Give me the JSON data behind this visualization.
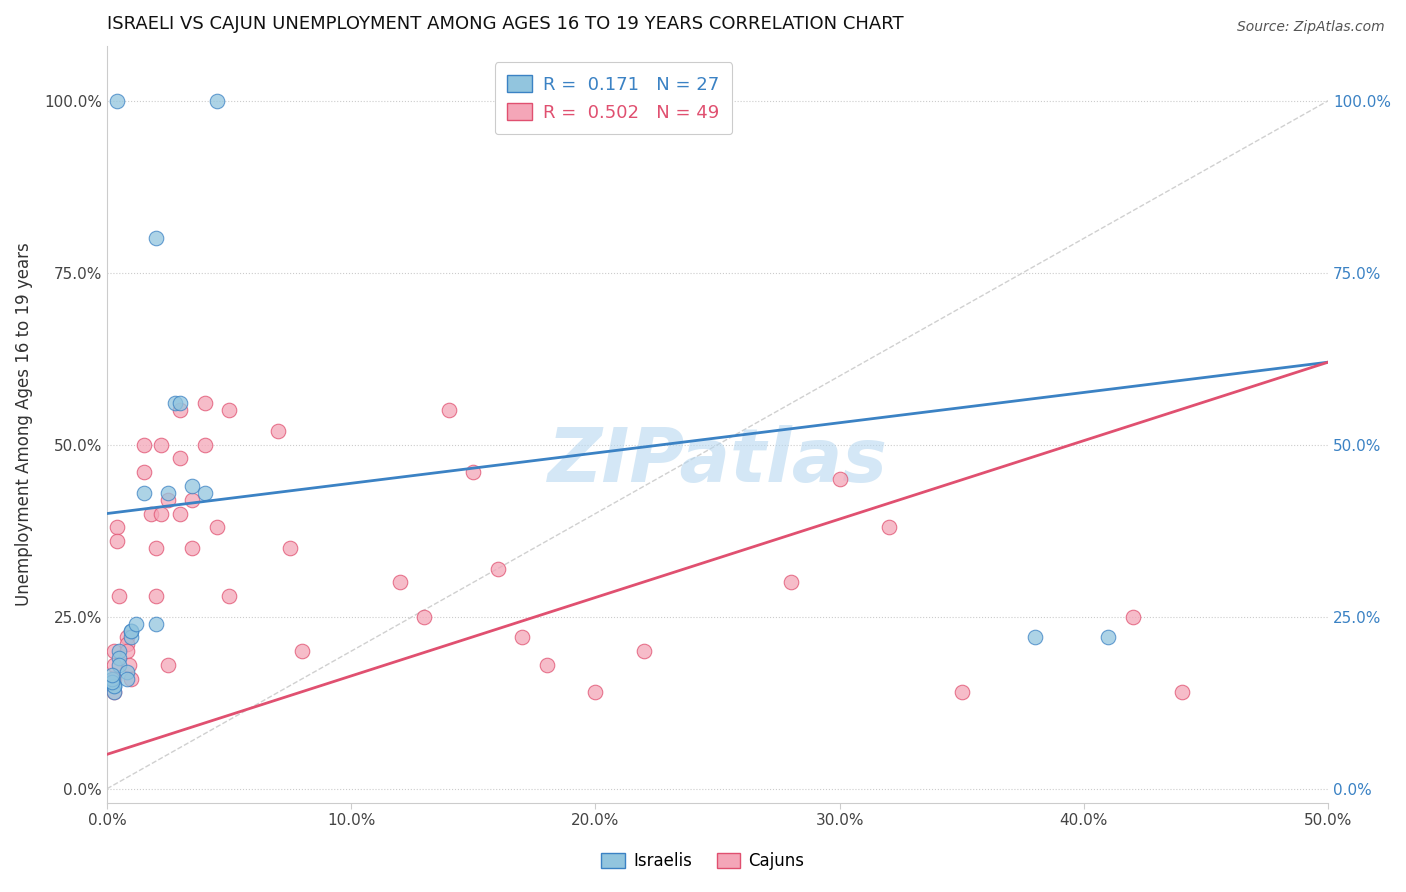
{
  "title": "ISRAELI VS CAJUN UNEMPLOYMENT AMONG AGES 16 TO 19 YEARS CORRELATION CHART",
  "source": "Source: ZipAtlas.com",
  "ylabel": "Unemployment Among Ages 16 to 19 years",
  "xlim": [
    0.0,
    50.0
  ],
  "ylim": [
    -2.0,
    108.0
  ],
  "xticks": [
    0.0,
    10.0,
    20.0,
    30.0,
    40.0,
    50.0
  ],
  "xtick_labels": [
    "0.0%",
    "10.0%",
    "20.0%",
    "30.0%",
    "40.0%",
    "50.0%"
  ],
  "yticks": [
    0.0,
    25.0,
    50.0,
    75.0,
    100.0
  ],
  "ytick_labels": [
    "0.0%",
    "25.0%",
    "50.0%",
    "75.0%",
    "100.0%"
  ],
  "israeli_color": "#92c5de",
  "cajun_color": "#f4a6b8",
  "israeli_line_color": "#3b82c4",
  "cajun_line_color": "#e05070",
  "diag_line_color": "#d0d0d0",
  "watermark": "ZIPatlas",
  "watermark_color": "#b8d8f0",
  "legend_R_israeli": "0.171",
  "legend_N_israeli": "27",
  "legend_R_cajun": "0.502",
  "legend_N_cajun": "49",
  "israelis_x": [
    1.5,
    2.5,
    2.8,
    1.0,
    1.0,
    1.0,
    1.2,
    0.5,
    0.5,
    0.5,
    0.8,
    0.8,
    0.3,
    0.3,
    0.3,
    0.2,
    0.2,
    0.2,
    2.0,
    2.0,
    3.0,
    3.5,
    4.0,
    38.0,
    41.0,
    4.5,
    0.4
  ],
  "israelis_y": [
    43.0,
    43.0,
    56.0,
    23.0,
    22.0,
    23.0,
    24.0,
    20.0,
    19.0,
    18.0,
    17.0,
    16.0,
    15.0,
    14.0,
    15.0,
    16.0,
    15.5,
    16.5,
    24.0,
    80.0,
    56.0,
    44.0,
    43.0,
    22.0,
    22.0,
    100.0,
    100.0
  ],
  "cajuns_x": [
    0.3,
    0.3,
    0.3,
    0.3,
    0.4,
    0.4,
    0.5,
    0.8,
    0.8,
    0.8,
    0.9,
    1.0,
    1.5,
    1.5,
    1.8,
    2.0,
    2.0,
    2.2,
    2.2,
    2.5,
    2.5,
    3.0,
    3.0,
    3.0,
    3.5,
    3.5,
    4.0,
    4.0,
    4.5,
    5.0,
    5.0,
    7.0,
    7.5,
    8.0,
    12.0,
    13.0,
    14.0,
    15.0,
    16.0,
    17.0,
    18.0,
    20.0,
    22.0,
    28.0,
    30.0,
    32.0,
    35.0,
    42.0,
    44.0
  ],
  "cajuns_y": [
    20.0,
    18.0,
    16.0,
    14.0,
    38.0,
    36.0,
    28.0,
    22.0,
    21.0,
    20.0,
    18.0,
    16.0,
    50.0,
    46.0,
    40.0,
    35.0,
    28.0,
    50.0,
    40.0,
    42.0,
    18.0,
    55.0,
    48.0,
    40.0,
    42.0,
    35.0,
    56.0,
    50.0,
    38.0,
    55.0,
    28.0,
    52.0,
    35.0,
    20.0,
    30.0,
    25.0,
    55.0,
    46.0,
    32.0,
    22.0,
    18.0,
    14.0,
    20.0,
    30.0,
    45.0,
    38.0,
    14.0,
    25.0,
    14.0
  ],
  "israeli_line_x0": 0.0,
  "israeli_line_y0": 40.0,
  "israeli_line_x1": 50.0,
  "israeli_line_y1": 62.0,
  "cajun_line_x0": 0.0,
  "cajun_line_y0": 5.0,
  "cajun_line_x1": 50.0,
  "cajun_line_y1": 62.0
}
